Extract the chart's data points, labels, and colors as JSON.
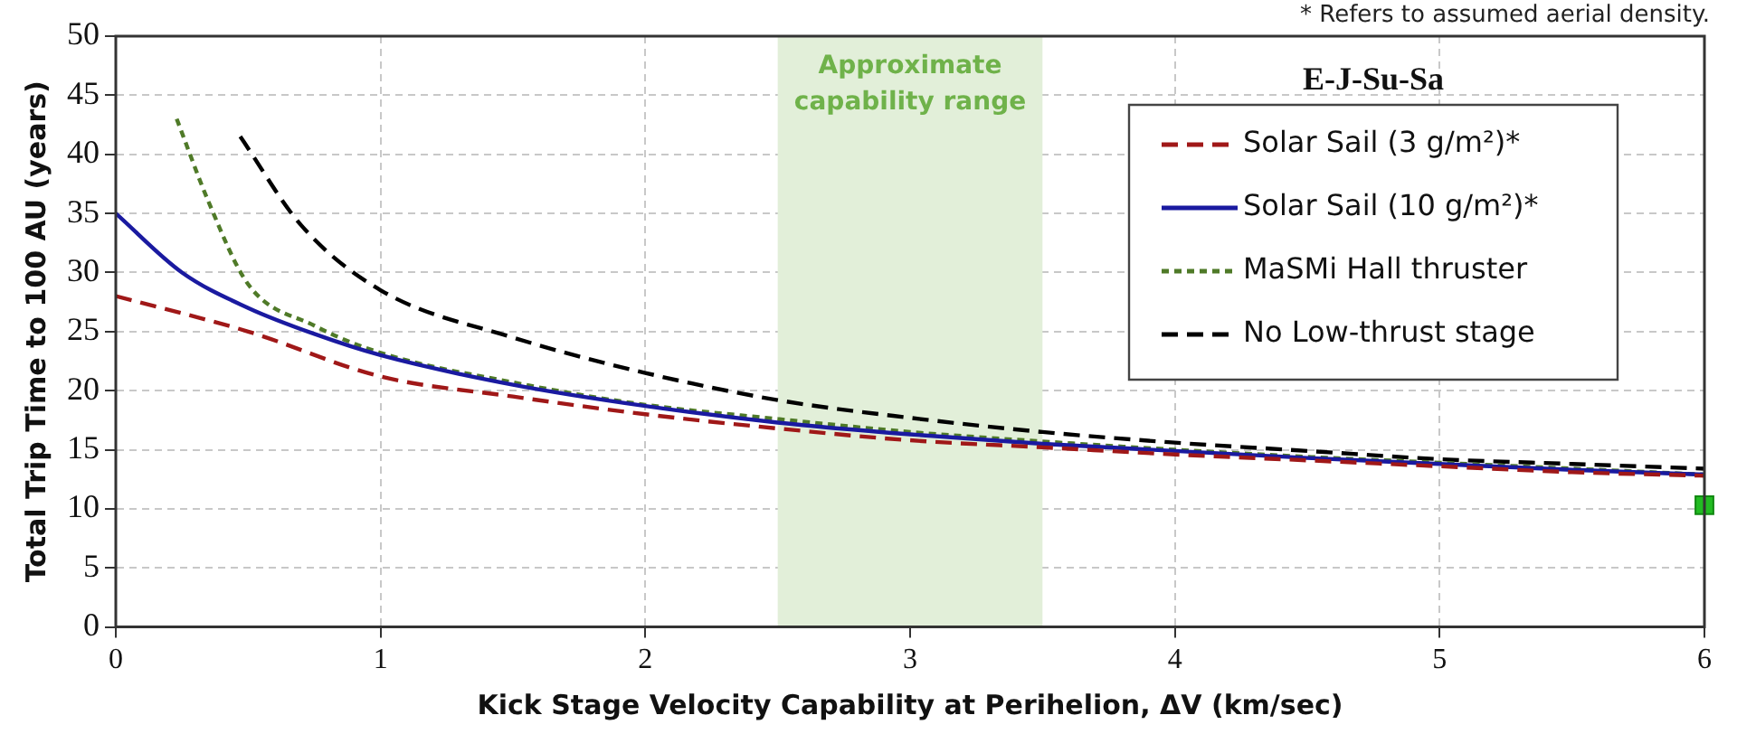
{
  "chart_data": {
    "type": "line",
    "title": "E-J-Su-Sa",
    "xlabel": "Kick Stage Velocity Capability at Perihelion, ΔV (km/sec)",
    "ylabel": "Total Trip Time to 100 AU (years)",
    "annotations": [
      "* Refers to assumed aerial density."
    ],
    "xlim": [
      0,
      6
    ],
    "xticks": [
      0,
      1,
      2,
      3,
      4,
      5,
      6
    ],
    "ylim": [
      0,
      50
    ],
    "yticks": [
      0,
      5,
      10,
      15,
      20,
      25,
      30,
      35,
      40,
      45,
      50
    ],
    "grid": true,
    "legend": "top right",
    "marker": "none",
    "bands": [
      {
        "axis": "x",
        "from": 2.5,
        "to": 3.5,
        "label": "Approximate capability range",
        "color": "#e2efd9"
      }
    ],
    "series": [
      {
        "name": "Solar Sail (3 g/m²)*",
        "color": "#a01818",
        "line_style": "dashed",
        "x": [
          0,
          0.5,
          1,
          1.5,
          2,
          2.5,
          3,
          3.5,
          4,
          4.5,
          5,
          5.5,
          6
        ],
        "values": [
          28,
          25,
          21.2,
          19.5,
          18,
          16.8,
          15.8,
          15.2,
          14.6,
          14.1,
          13.6,
          13.1,
          12.8
        ]
      },
      {
        "name": "Solar Sail (10 g/m²)*",
        "color": "#1a1aa0",
        "line_style": "solid",
        "x": [
          0,
          0.25,
          0.5,
          0.75,
          1,
          1.5,
          2,
          2.5,
          3,
          3.5,
          4,
          4.5,
          5,
          5.5,
          6
        ],
        "values": [
          35,
          30,
          27,
          24.8,
          23,
          20.5,
          18.7,
          17.3,
          16.3,
          15.5,
          14.9,
          14.3,
          13.8,
          13.3,
          12.9
        ]
      },
      {
        "name": "MaSMi Hall thruster",
        "color": "#4f7a28",
        "line_style": "dotted",
        "x": [
          0.23,
          0.35,
          0.5,
          0.75,
          1,
          1.5,
          2,
          2.5,
          3,
          3.5,
          4,
          4.5,
          5,
          5.5,
          6
        ],
        "values": [
          43,
          36,
          29,
          25.5,
          23.2,
          20.7,
          18.8,
          17.6,
          16.5,
          15.7,
          15,
          14.4,
          13.9,
          13.4,
          12.9
        ]
      },
      {
        "name": "No Low-thrust stage",
        "color": "#000000",
        "line_style": "dashed",
        "x": [
          0.47,
          0.7,
          1,
          1.5,
          2,
          2.5,
          3,
          3.5,
          4,
          4.5,
          5,
          5.5,
          6
        ],
        "values": [
          41.5,
          34,
          28.5,
          24.5,
          21.5,
          19.2,
          17.7,
          16.5,
          15.6,
          14.9,
          14.2,
          13.8,
          13.4
        ]
      },
      {
        "type": "scatter",
        "color": "#22bb22",
        "marker": "square",
        "x": [
          6
        ],
        "values": [
          10.3
        ]
      }
    ]
  }
}
